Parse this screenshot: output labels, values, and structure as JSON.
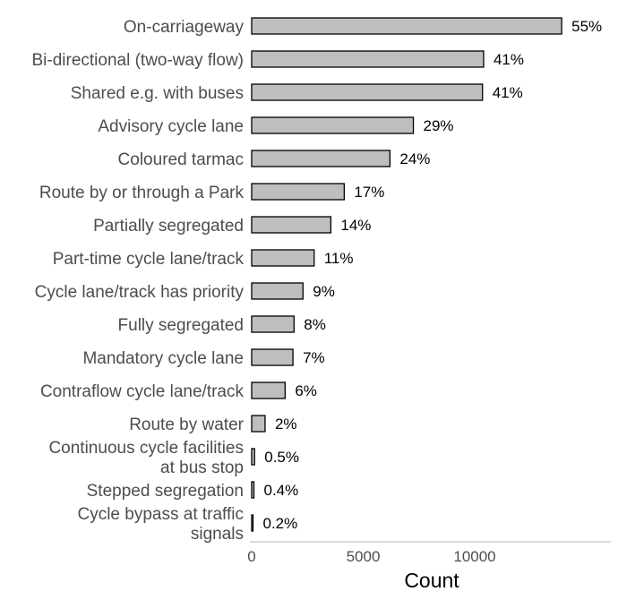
{
  "chart_data": {
    "type": "bar",
    "orientation": "horizontal",
    "title": "",
    "xlabel": "Count",
    "ylabel": "",
    "xlim": [
      0,
      16000
    ],
    "xticks": [
      0,
      5000,
      10000
    ],
    "xtick_labels": [
      "0",
      "5000",
      "10000"
    ],
    "grid": false,
    "bar_fill": "#bebebe",
    "bar_stroke": "#000000",
    "categories": [
      [
        "On-carriageway"
      ],
      [
        "Bi-directional (two-way flow)"
      ],
      [
        "Shared e.g. with buses"
      ],
      [
        "Advisory cycle lane"
      ],
      [
        "Coloured tarmac"
      ],
      [
        "Route by or through a Park"
      ],
      [
        "Partially segregated"
      ],
      [
        "Part-time cycle lane/track"
      ],
      [
        "Cycle lane/track has priority"
      ],
      [
        "Fully segregated"
      ],
      [
        "Mandatory cycle lane"
      ],
      [
        "Contraflow cycle lane/track"
      ],
      [
        "Route by water"
      ],
      [
        "Continuous cycle facilities",
        "at bus stop"
      ],
      [
        "Stepped segregation"
      ],
      [
        "Cycle bypass at traffic",
        "signals"
      ]
    ],
    "values": [
      13900,
      10400,
      10350,
      7250,
      6200,
      4150,
      3550,
      2800,
      2300,
      1900,
      1850,
      1500,
      600,
      130,
      100,
      50
    ],
    "labels": [
      "55%",
      "41%",
      "41%",
      "29%",
      "24%",
      "17%",
      "14%",
      "11%",
      "9%",
      "8%",
      "7%",
      "6%",
      "2%",
      "0.5%",
      "0.4%",
      "0.2%"
    ]
  }
}
